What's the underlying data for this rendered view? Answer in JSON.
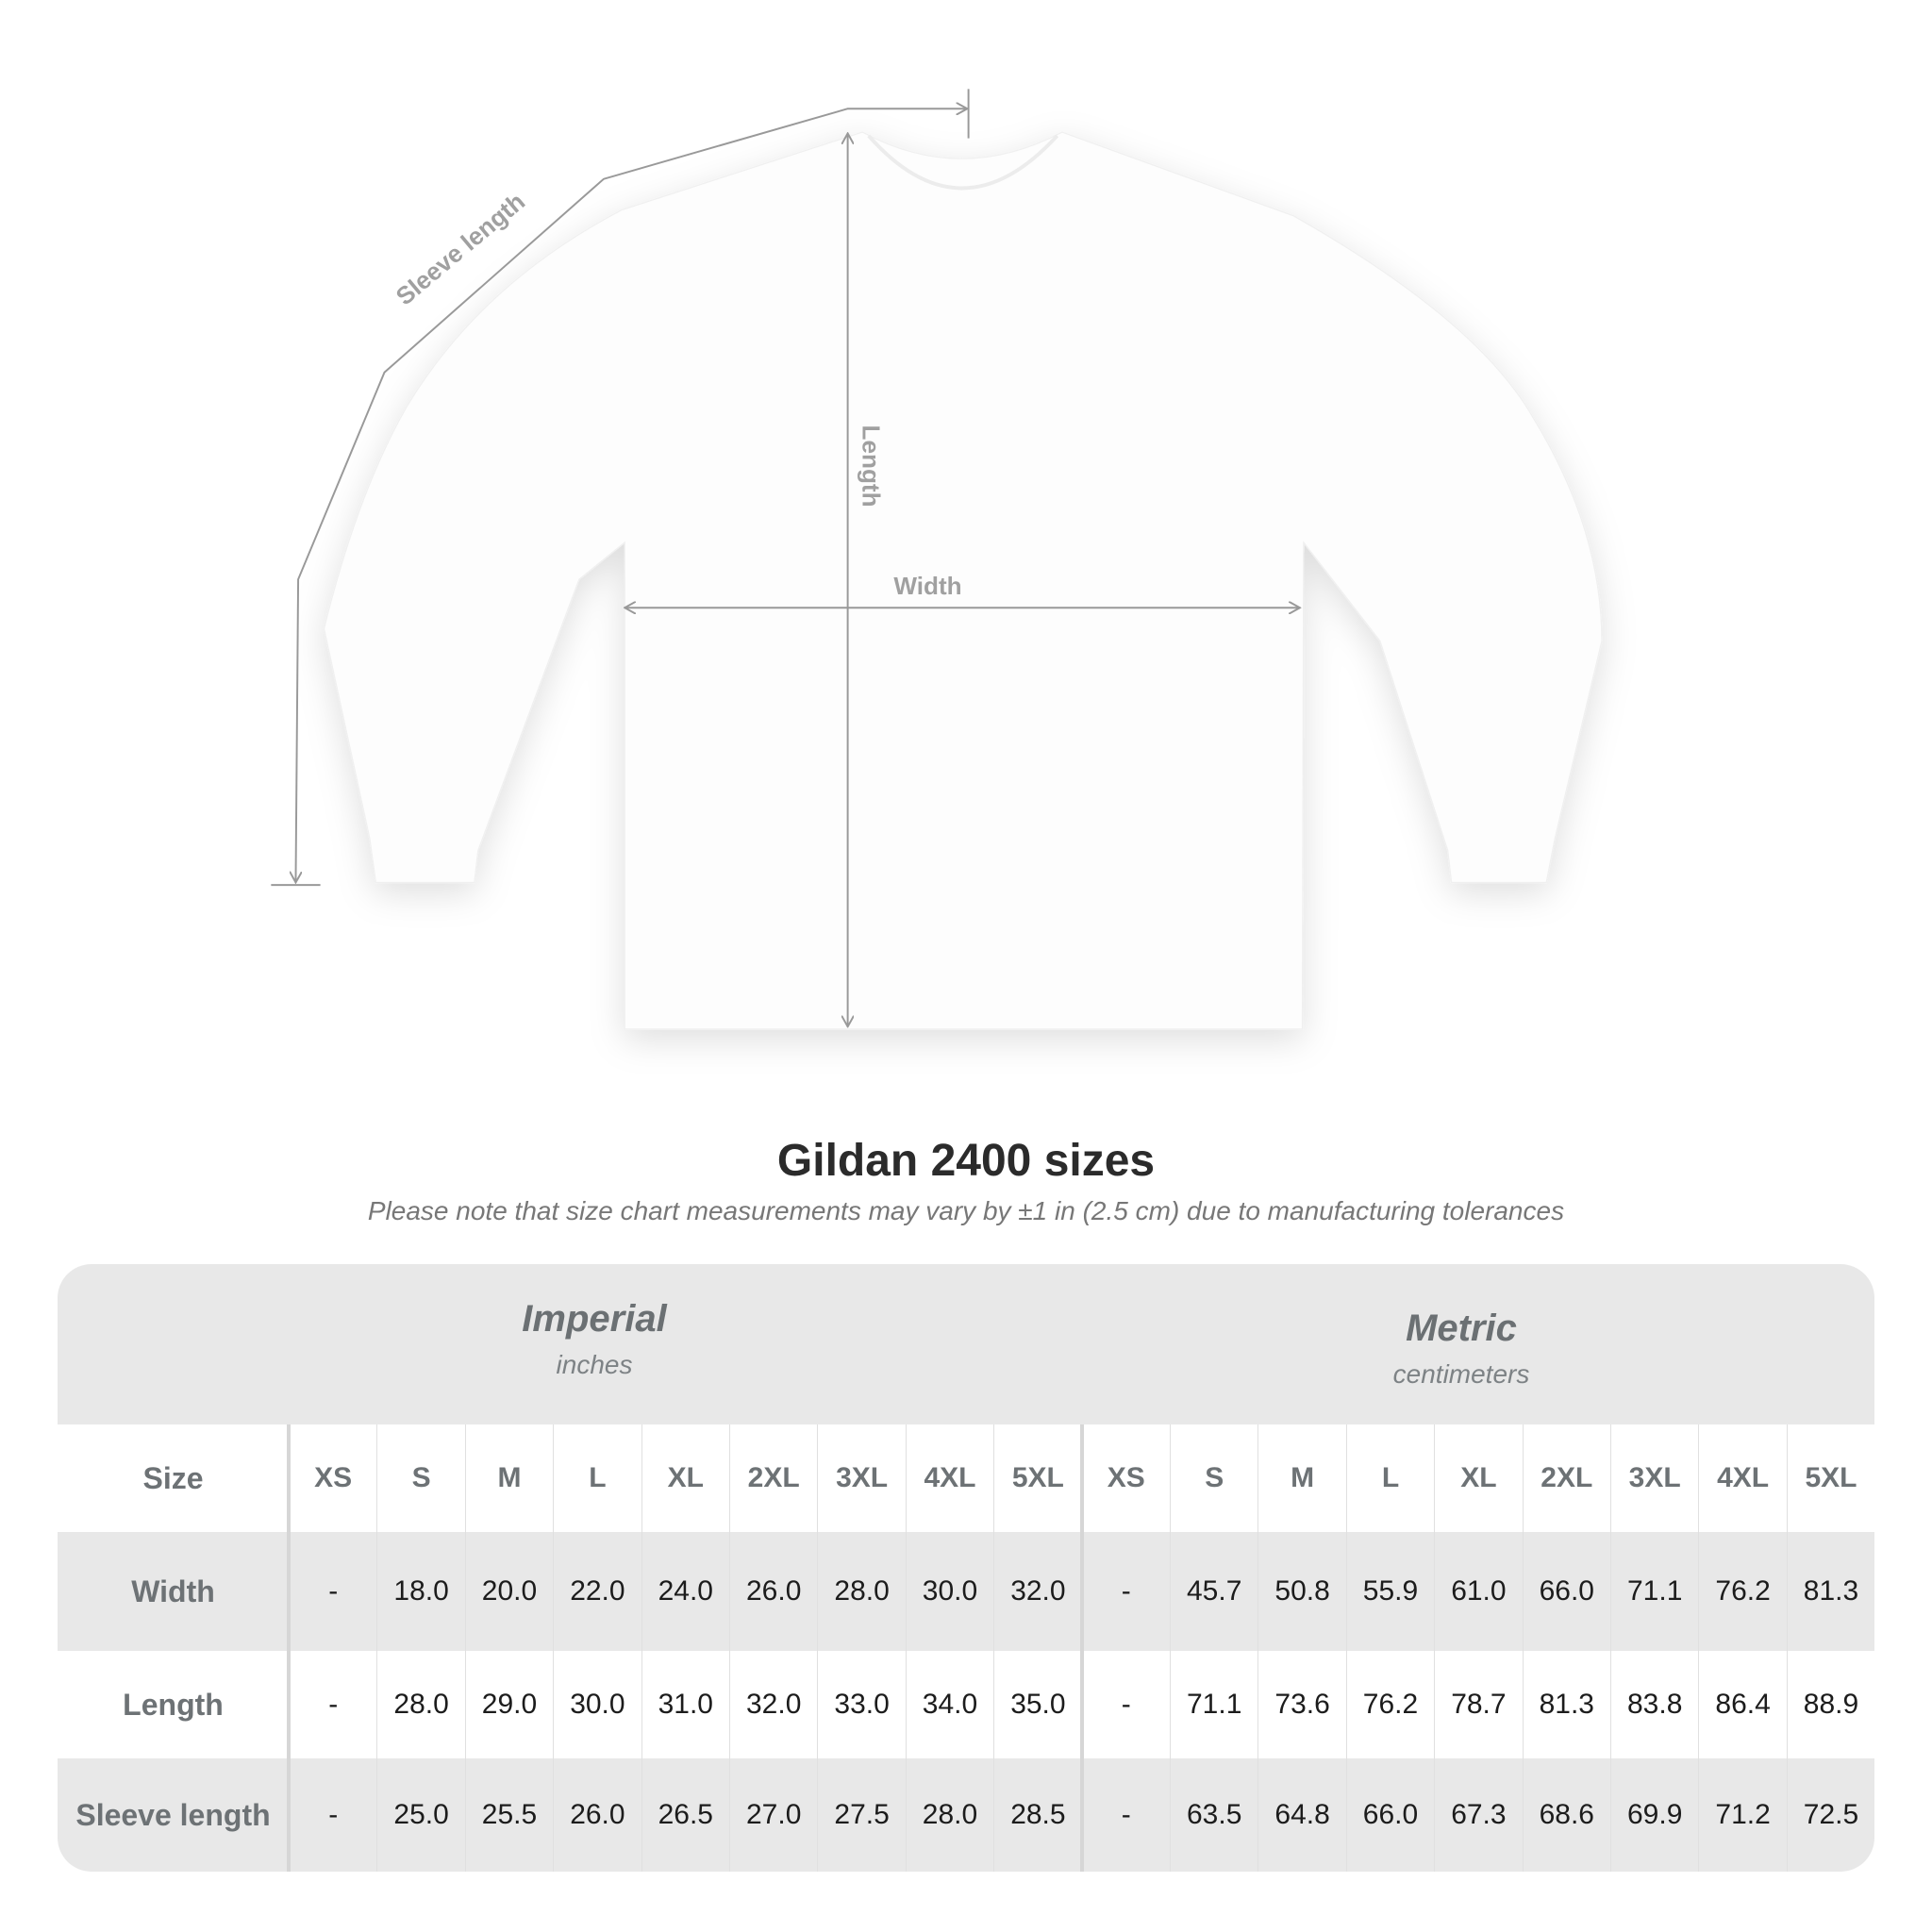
{
  "diagram": {
    "labels": {
      "sleeve": "Sleeve length",
      "length": "Length",
      "width": "Width"
    },
    "line_color": "#999999"
  },
  "title": "Gildan 2400 sizes",
  "subtitle": "Please note that size chart measurements may vary by ±1 in (2.5 cm) due to manufacturing tolerances",
  "table": {
    "imperial": {
      "name": "Imperial",
      "unit": "inches"
    },
    "metric": {
      "name": "Metric",
      "unit": "centimeters"
    },
    "size_label": "Size",
    "sizes": [
      "XS",
      "S",
      "M",
      "L",
      "XL",
      "2XL",
      "3XL",
      "4XL",
      "5XL"
    ],
    "rows": [
      {
        "label": "Width",
        "imperial": [
          "-",
          "18.0",
          "20.0",
          "22.0",
          "24.0",
          "26.0",
          "28.0",
          "30.0",
          "32.0"
        ],
        "metric": [
          "-",
          "45.7",
          "50.8",
          "55.9",
          "61.0",
          "66.0",
          "71.1",
          "76.2",
          "81.3"
        ]
      },
      {
        "label": "Length",
        "imperial": [
          "-",
          "28.0",
          "29.0",
          "30.0",
          "31.0",
          "32.0",
          "33.0",
          "34.0",
          "35.0"
        ],
        "metric": [
          "-",
          "71.1",
          "73.6",
          "76.2",
          "78.7",
          "81.3",
          "83.8",
          "86.4",
          "88.9"
        ]
      },
      {
        "label": "Sleeve length",
        "imperial": [
          "-",
          "25.0",
          "25.5",
          "26.0",
          "26.5",
          "27.0",
          "27.5",
          "28.0",
          "28.5"
        ],
        "metric": [
          "-",
          "63.5",
          "64.8",
          "66.0",
          "67.3",
          "68.6",
          "69.9",
          "71.2",
          "72.5"
        ]
      }
    ],
    "header_bg": "#e8e8e8"
  }
}
